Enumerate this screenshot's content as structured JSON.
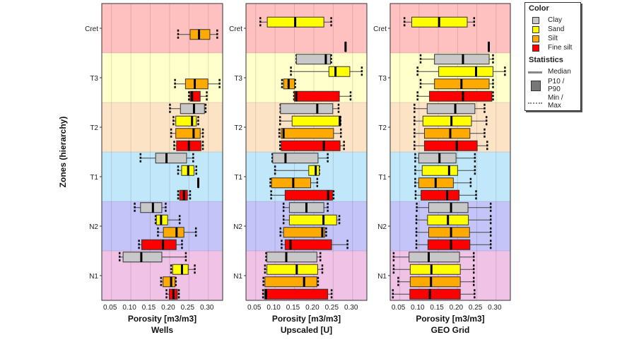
{
  "yaxis_title": "Zones (hierarchy)",
  "legend": {
    "color_title": "Color",
    "statistics_title": "Statistics",
    "median_label": "Median",
    "p10_p90_label": "P10 / P90",
    "minmax_label": "Min / Max"
  },
  "colors": {
    "Clay": "#c8c8c8",
    "Sand": "#ffff00",
    "Silt": "#ffaa00",
    "Fine silt": "#ff0000"
  },
  "zone_colors": {
    "Cret": "#ffc0c0",
    "T3": "#ffffcc",
    "T2": "#fde3c6",
    "T1": "#c0e8fa",
    "N2": "#c4c4f8",
    "N1": "#f0c2e6"
  },
  "chart_data": [
    {
      "type": "boxplot",
      "orientation": "horizontal",
      "xlabel": "Porosity [m3/m3]",
      "subtitle": "Wells",
      "xlim": [
        0.025,
        0.337
      ],
      "grid": true,
      "xticks": [
        "0.05",
        "0.10",
        "0.15",
        "0.20",
        "0.25",
        "0.30"
      ],
      "categories": [
        "Cret",
        "T3",
        "T2",
        "T1",
        "N2",
        "N1"
      ],
      "stats_order": [
        "min",
        "p10",
        "median",
        "p90",
        "max"
      ],
      "series": [
        {
          "name": "Clay",
          "boxes": [
            null,
            null,
            [
              0.201,
              0.228,
              0.263,
              0.29,
              0.293
            ],
            [
              0.125,
              0.164,
              0.192,
              0.244,
              0.261
            ],
            [
              0.11,
              0.125,
              0.157,
              0.18,
              0.19
            ],
            [
              0.071,
              0.08,
              0.127,
              0.18,
              0.242
            ]
          ]
        },
        {
          "name": "Sand",
          "boxes": [
            null,
            null,
            [
              0.21,
              0.216,
              0.258,
              0.269,
              0.274
            ],
            [
              0.222,
              0.231,
              0.248,
              0.263,
              0.269
            ],
            [
              0.164,
              0.166,
              0.178,
              0.195,
              0.226
            ],
            [
              0.204,
              0.208,
              0.232,
              0.248,
              0.265
            ]
          ]
        },
        {
          "name": "Silt",
          "boxes": [
            [
              0.222,
              0.253,
              0.276,
              0.304,
              0.323
            ],
            [
              0.214,
              0.241,
              0.265,
              0.299,
              0.329
            ],
            [
              0.204,
              0.216,
              0.262,
              0.279,
              0.286
            ],
            [
              0.274,
              0.274,
              0.274,
              0.274,
              0.274
            ],
            [
              0.17,
              0.184,
              0.218,
              0.237,
              0.268
            ],
            [
              0.178,
              0.183,
              0.204,
              0.214,
              0.216
            ]
          ]
        },
        {
          "name": "Fine silt",
          "boxes": [
            null,
            [
              0.25,
              0.253,
              0.258,
              0.279,
              0.296
            ],
            [
              0.212,
              0.218,
              0.25,
              0.281,
              0.286
            ],
            [
              0.222,
              0.226,
              0.237,
              0.246,
              0.253
            ],
            [
              0.121,
              0.128,
              0.183,
              0.217,
              0.232
            ],
            [
              0.192,
              0.199,
              0.21,
              0.22,
              0.224
            ]
          ]
        }
      ]
    },
    {
      "type": "boxplot",
      "orientation": "horizontal",
      "xlabel": "Porosity [m3/m3]",
      "subtitle": "Upscaled [U]",
      "xlim": [
        0.025,
        0.337
      ],
      "grid": true,
      "xticks": [
        "0.05",
        "0.10",
        "0.15",
        "0.20",
        "0.25",
        "0.30"
      ],
      "categories": [
        "Cret",
        "T3",
        "T2",
        "T1",
        "N2",
        "N1"
      ],
      "stats_order": [
        "min",
        "p10",
        "median",
        "p90",
        "max"
      ],
      "series": [
        {
          "name": "Clay",
          "boxes": [
            null,
            [
              0.155,
              0.155,
              0.231,
              0.243,
              0.245
            ],
            [
              0.114,
              0.114,
              0.209,
              0.249,
              0.264
            ],
            [
              0.093,
              0.094,
              0.127,
              0.211,
              0.236
            ],
            [
              0.122,
              0.137,
              0.181,
              0.226,
              0.236
            ],
            [
              0.077,
              0.079,
              0.129,
              0.208,
              0.217
            ]
          ]
        },
        {
          "name": "Sand",
          "boxes": [
            [
              0.062,
              0.08,
              0.152,
              0.226,
              0.245
            ],
            [
              0.141,
              0.239,
              0.256,
              0.293,
              0.324
            ],
            [
              0.113,
              0.144,
              0.267,
              0.269,
              0.269
            ],
            [
              0.1,
              0.187,
              0.205,
              0.214,
              0.214
            ],
            [
              0.122,
              0.137,
              0.225,
              0.259,
              0.266
            ],
            [
              0.074,
              0.079,
              0.156,
              0.21,
              0.222
            ]
          ]
        },
        {
          "name": "Silt",
          "boxes": [
            null,
            [
              0.118,
              0.122,
              0.135,
              0.15,
              0.152
            ],
            [
              0.111,
              0.116,
              0.122,
              0.251,
              0.27
            ],
            [
              0.088,
              0.091,
              0.147,
              0.192,
              0.209
            ],
            [
              0.114,
              0.122,
              0.222,
              0.228,
              0.232
            ],
            [
              0.07,
              0.074,
              0.175,
              0.208,
              0.211
            ]
          ]
        },
        {
          "name": "Fine silt",
          "boxes": [
            [
              0.282,
              0.282,
              0.282,
              0.282,
              0.282
            ],
            [
              0.149,
              0.15,
              0.155,
              0.266,
              0.295
            ],
            [
              0.113,
              0.116,
              0.226,
              0.268,
              0.278
            ],
            [
              0.09,
              0.126,
              0.237,
              0.248,
              0.251
            ],
            [
              0.117,
              0.126,
              0.14,
              0.246,
              0.287
            ],
            [
              0.069,
              0.073,
              0.077,
              0.236,
              0.246
            ]
          ]
        }
      ]
    },
    {
      "type": "boxplot",
      "orientation": "horizontal",
      "xlabel": "Porosity [m3/m3]",
      "subtitle": "GEO Grid",
      "xlim": [
        0.025,
        0.337
      ],
      "grid": true,
      "xticks": [
        "0.05",
        "0.10",
        "0.15",
        "0.20",
        "0.25",
        "0.30"
      ],
      "categories": [
        "Cret",
        "T3",
        "T2",
        "T1",
        "N2",
        "N1"
      ],
      "stats_order": [
        "min",
        "p10",
        "median",
        "p90",
        "max"
      ],
      "series": [
        {
          "name": "Clay",
          "boxes": [
            null,
            [
              0.104,
              0.14,
              0.214,
              0.282,
              0.292
            ],
            [
              0.088,
              0.121,
              0.194,
              0.245,
              0.27
            ],
            [
              0.09,
              0.099,
              0.153,
              0.196,
              0.245
            ],
            [
              0.094,
              0.125,
              0.183,
              0.227,
              0.286
            ],
            [
              0.034,
              0.074,
              0.125,
              0.205,
              0.242
            ]
          ]
        },
        {
          "name": "Sand",
          "boxes": [
            [
              0.062,
              0.081,
              0.152,
              0.225,
              0.243
            ],
            [
              0.096,
              0.151,
              0.248,
              0.292,
              0.323
            ],
            [
              0.088,
              0.11,
              0.184,
              0.236,
              0.275
            ],
            [
              0.09,
              0.108,
              0.178,
              0.2,
              0.245
            ],
            [
              0.093,
              0.122,
              0.175,
              0.228,
              0.286
            ],
            [
              0.034,
              0.077,
              0.132,
              0.207,
              0.242
            ]
          ]
        },
        {
          "name": "Silt",
          "boxes": [
            null,
            [
              0.104,
              0.14,
              0.21,
              0.282,
              0.292
            ],
            [
              0.088,
              0.114,
              0.181,
              0.232,
              0.27
            ],
            [
              0.09,
              0.099,
              0.143,
              0.189,
              0.234
            ],
            [
              0.093,
              0.125,
              0.183,
              0.231,
              0.286
            ],
            [
              0.046,
              0.077,
              0.131,
              0.207,
              0.242
            ]
          ]
        },
        {
          "name": "Fine silt",
          "boxes": [
            [
              0.281,
              0.281,
              0.281,
              0.281,
              0.281
            ],
            [
              0.096,
              0.127,
              0.214,
              0.289,
              0.292
            ],
            [
              0.088,
              0.114,
              0.198,
              0.251,
              0.277
            ],
            [
              0.091,
              0.105,
              0.173,
              0.204,
              0.248
            ],
            [
              0.093,
              0.123,
              0.183,
              0.232,
              0.286
            ],
            [
              0.032,
              0.076,
              0.128,
              0.207,
              0.244
            ]
          ]
        }
      ]
    }
  ]
}
